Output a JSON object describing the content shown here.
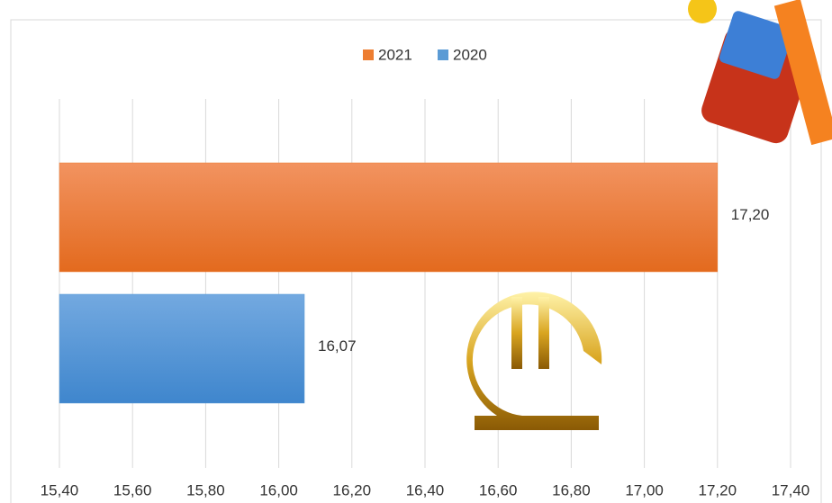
{
  "chart_data": {
    "type": "hbar",
    "categories": [
      null
    ],
    "series": [
      {
        "name": "2021",
        "color": "#ed7d31",
        "values": [
          17.2
        ],
        "value_labels": [
          "17,20"
        ]
      },
      {
        "name": "2020",
        "color": "#5b9bd5",
        "values": [
          16.07
        ],
        "value_labels": [
          "16,07"
        ]
      }
    ],
    "xlim": [
      15.4,
      17.4
    ],
    "xticks": [
      {
        "value": 15.4,
        "label": "15,40"
      },
      {
        "value": 15.6,
        "label": "15,60"
      },
      {
        "value": 15.8,
        "label": "15,80"
      },
      {
        "value": 16.0,
        "label": "16,00"
      },
      {
        "value": 16.2,
        "label": "16,20"
      },
      {
        "value": 16.4,
        "label": "16,40"
      },
      {
        "value": 16.6,
        "label": "16,60"
      },
      {
        "value": 16.8,
        "label": "16,80"
      },
      {
        "value": 17.0,
        "label": "17,00"
      },
      {
        "value": 17.2,
        "label": "17,20"
      },
      {
        "value": 17.4,
        "label": "17,40"
      }
    ],
    "grid": true,
    "legend": "top"
  }
}
